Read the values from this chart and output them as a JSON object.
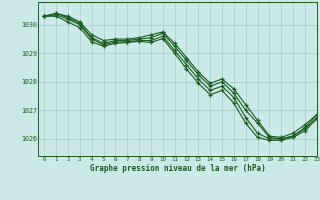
{
  "background_color": "#cce8e8",
  "grid_color": "#aacccc",
  "line_color": "#1a5c1a",
  "xlabel": "Graphe pression niveau de la mer (hPa)",
  "xlim": [
    -0.5,
    23
  ],
  "ylim": [
    1025.4,
    1030.8
  ],
  "yticks": [
    1026,
    1027,
    1028,
    1029,
    1030
  ],
  "xticks": [
    0,
    1,
    2,
    3,
    4,
    5,
    6,
    7,
    8,
    9,
    10,
    11,
    12,
    13,
    14,
    15,
    16,
    17,
    18,
    19,
    20,
    21,
    22,
    23
  ],
  "s1": [
    1030.3,
    1030.4,
    1030.3,
    1030.1,
    1029.65,
    1029.45,
    1029.5,
    1029.5,
    1029.55,
    1029.65,
    1029.75,
    1029.35,
    1028.85,
    1028.35,
    1027.95,
    1028.1,
    1027.75,
    1027.2,
    1026.65,
    1026.1,
    1026.05,
    1026.2,
    1026.5,
    1026.85
  ],
  "s2": [
    1030.3,
    1030.4,
    1030.25,
    1030.05,
    1029.55,
    1029.35,
    1029.45,
    1029.45,
    1029.5,
    1029.55,
    1029.7,
    1029.25,
    1028.75,
    1028.25,
    1027.85,
    1028.0,
    1027.6,
    1027.0,
    1026.55,
    1026.05,
    1026.0,
    1026.1,
    1026.35,
    1026.75
  ],
  "s3": [
    1030.3,
    1030.35,
    1030.2,
    1030.0,
    1029.5,
    1029.3,
    1029.4,
    1029.4,
    1029.45,
    1029.45,
    1029.6,
    1029.1,
    1028.6,
    1028.1,
    1027.7,
    1027.85,
    1027.45,
    1026.75,
    1026.2,
    1026.0,
    1026.0,
    1026.1,
    1026.4,
    1026.85
  ],
  "s4": [
    1030.3,
    1030.3,
    1030.1,
    1029.9,
    1029.4,
    1029.25,
    1029.35,
    1029.38,
    1029.42,
    1029.38,
    1029.52,
    1029.0,
    1028.45,
    1027.95,
    1027.55,
    1027.7,
    1027.25,
    1026.55,
    1026.05,
    1025.95,
    1025.95,
    1026.05,
    1026.28,
    1026.7
  ]
}
